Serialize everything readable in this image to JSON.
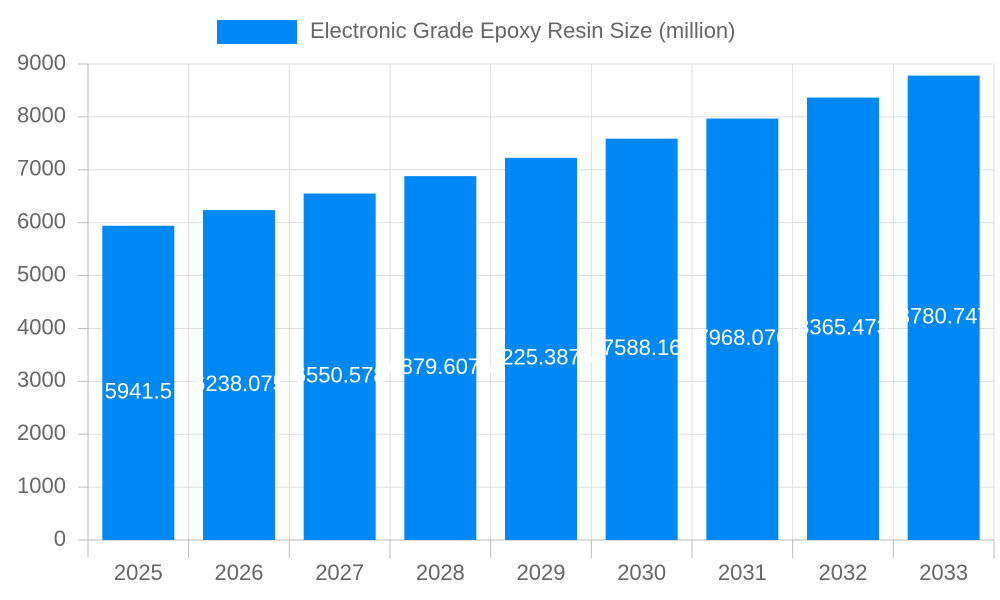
{
  "chart_data": {
    "type": "bar",
    "legend": "Electronic Grade Epoxy Resin Size (million)",
    "color": "#0088f5",
    "categories": [
      "2025",
      "2026",
      "2027",
      "2028",
      "2029",
      "2030",
      "2031",
      "2032",
      "2033"
    ],
    "values": [
      5941.5,
      6238.075,
      6550.578,
      6879.6075,
      7225.3875,
      7588.16,
      7968.076,
      8365.473,
      8780.747
    ],
    "ylim": [
      0,
      9000
    ],
    "yticks": [
      0,
      1000,
      2000,
      3000,
      4000,
      5000,
      6000,
      7000,
      8000,
      9000
    ],
    "grid": true
  }
}
